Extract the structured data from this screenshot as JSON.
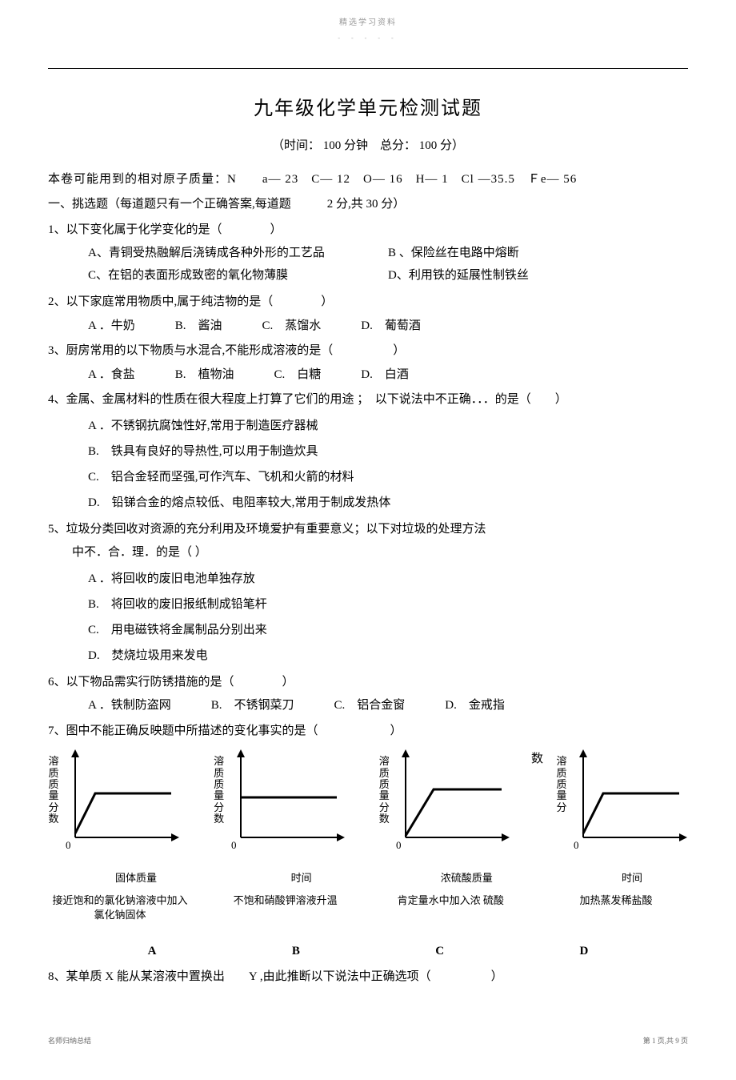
{
  "header": {
    "tag": "精选学习资料",
    "dots": "- - - - -"
  },
  "title": "九年级化学单元检测试题",
  "subtitle": "（时间： 100 分钟　总分： 100 分）",
  "atomic_mass": "本卷可能用到的相对原子质量：N　　a— 23　C— 12　O— 16　H— 1　Cl —35.5　Ｆe— 56",
  "section_title": "一、挑选题（每道题只有一个正确答案,每道题　　　2 分,共 30 分）",
  "questions": [
    {
      "text": "1、以下变化属于化学变化的是（　　　　）",
      "options_type": "two-col",
      "options": [
        "A、青铜受热融解后浇铸成各种外形的工艺品",
        "B 、保险丝在电路中熔断",
        "C、在铝的表面形成致密的氧化物薄膜",
        "D、利用铁的延展性制铁丝"
      ]
    },
    {
      "text": "2、以下家庭常用物质中,属于纯洁物的是（　　　　）",
      "options_type": "row",
      "options": [
        "A ．牛奶",
        "B.　酱油",
        "C.　蒸馏水",
        "D.　葡萄酒"
      ]
    },
    {
      "text": "3、厨房常用的以下物质与水混合,不能形成溶液的是（　　　　　）",
      "options_type": "row",
      "options": [
        "A ．食盐",
        "B.　植物油",
        "C.　白糖",
        "D.　白酒"
      ]
    },
    {
      "text": "4、金属、金属材料的性质在很大程度上打算了它们的用途 ；　以下说法中不正确．．．的是（　　）",
      "options_type": "col",
      "options": [
        "A ．不锈钢抗腐蚀性好,常用于制造医疗器械",
        "B.　铁具有良好的导热性,可以用于制造炊具",
        "C.　铝合金轻而坚强,可作汽车、飞机和火箭的材料",
        "D.　铅锑合金的熔点较低、电阻率较大,常用于制成发热体"
      ]
    },
    {
      "text": "5、垃圾分类回收对资源的充分利用及环境爱护有重要意义；以下对垃圾的处理方法",
      "text2": "中不．合．理．的是（ ）",
      "options_type": "col",
      "options": [
        "A ．将回收的废旧电池单独存放",
        "B.　将回收的废旧报纸制成铅笔杆",
        "C.　用电磁铁将金属制品分别出来",
        "D.　焚烧垃圾用来发电"
      ]
    },
    {
      "text": "6、以下物品需实行防锈措施的是（　　　　）",
      "options_type": "row",
      "options": [
        "A ．铁制防盗网",
        "B.　不锈钢菜刀",
        "C.　铝合金窗",
        "D.　金戒指"
      ]
    }
  ],
  "q7_text": "7、图中不能正确反映题中所描述的变化事实的是（　　　　　　）",
  "charts": [
    {
      "y_label": "溶质质量分数",
      "x_label": "固体质量",
      "caption": "接近饱和的氯化钠溶液中加入氯化钠固体",
      "letter": "A",
      "curve_type": "rise_plateau"
    },
    {
      "y_label": "溶质质量分数",
      "x_label": "时间",
      "caption": "不饱和硝酸钾溶液升温",
      "letter": "B",
      "curve_type": "flat"
    },
    {
      "y_label": "溶质质量分数",
      "x_label": "浓硫酸质量",
      "caption": "肯定量水中加入浓 硫酸",
      "letter": "C",
      "curve_type": "rise_plateau_high"
    },
    {
      "y_label": "溶质质量分",
      "y_prefix": "数",
      "x_label": "时间",
      "caption": "加热蒸发稀盐酸",
      "letter": "D",
      "curve_type": "rise_plateau"
    }
  ],
  "q8_text": "8、某单质 X 能从某溶液中置换出　　Y ,由此推断以下说法中正确选项（　　　　　）",
  "footer": {
    "left": "名师归纳总结",
    "right": "第 1 页,共 9 页"
  },
  "chart_style": {
    "axis_color": "#000000",
    "curve_color": "#000000",
    "stroke_width": 2,
    "width": 150,
    "height": 130
  }
}
